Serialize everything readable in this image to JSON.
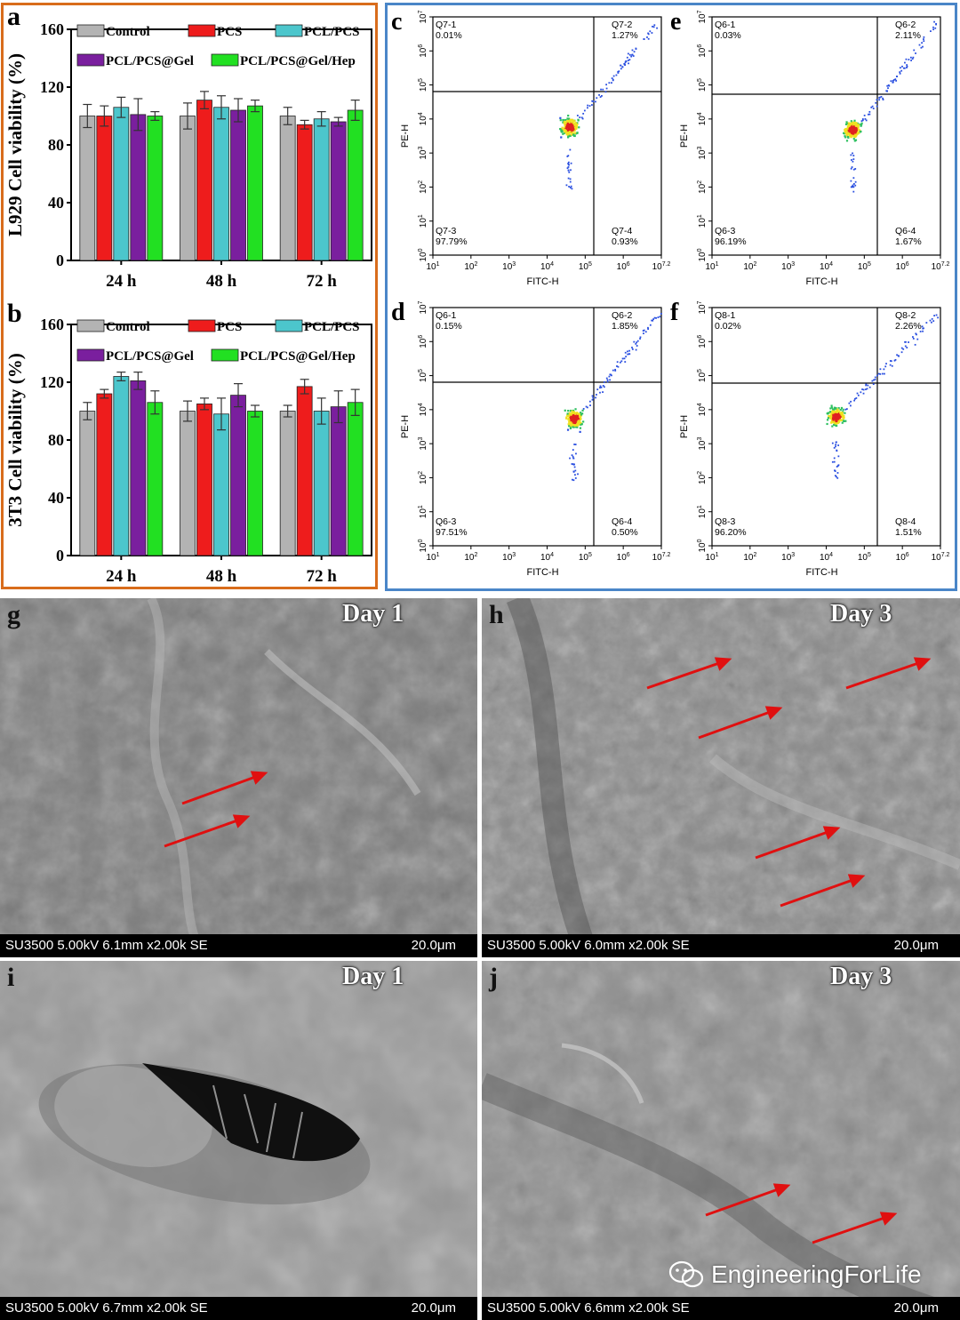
{
  "bar_panels": [
    {
      "letter": "a",
      "ylabel": "L929 Cell viability (%)"
    },
    {
      "letter": "b",
      "ylabel": "3T3 Cell viability (%)"
    }
  ],
  "legend": [
    "Control",
    "PCS",
    "PCL/PCS",
    "PCL/PCS@Gel",
    "PCL/PCS@Gel/Hep"
  ],
  "colors": {
    "Control": "#b3b3b3",
    "PCS": "#ee1c1c",
    "PCL/PCS": "#4cc6cc",
    "PCL/PCS@Gel": "#7a1f9e",
    "PCL/PCS@Gel/Hep": "#22e022",
    "left_border": "#d86c1c",
    "right_border": "#4a86c8"
  },
  "chart_data": [
    {
      "type": "bar",
      "ylabel": "L929 Cell viability (%)",
      "categories": [
        "24 h",
        "48 h",
        "72 h"
      ],
      "ylim": [
        0,
        160
      ],
      "yticks": [
        "0",
        "40",
        "80",
        "120",
        "160"
      ],
      "series": [
        {
          "name": "Control",
          "values": [
            100,
            100,
            100
          ],
          "errors": [
            8,
            9,
            6
          ]
        },
        {
          "name": "PCS",
          "values": [
            100,
            111,
            94
          ],
          "errors": [
            7,
            6,
            3
          ]
        },
        {
          "name": "PCL/PCS",
          "values": [
            106,
            106,
            98
          ],
          "errors": [
            7,
            8,
            5
          ]
        },
        {
          "name": "PCL/PCS@Gel",
          "values": [
            101,
            104,
            96
          ],
          "errors": [
            11,
            8,
            3
          ]
        },
        {
          "name": "PCL/PCS@Gel/Hep",
          "values": [
            100,
            107,
            104
          ],
          "errors": [
            3,
            4,
            7
          ]
        }
      ]
    },
    {
      "type": "bar",
      "ylabel": "3T3 Cell viability (%)",
      "categories": [
        "24 h",
        "48 h",
        "72 h"
      ],
      "ylim": [
        0,
        160
      ],
      "yticks": [
        "0",
        "40",
        "80",
        "120",
        "160"
      ],
      "series": [
        {
          "name": "Control",
          "values": [
            100,
            100,
            100
          ],
          "errors": [
            6,
            7,
            4
          ]
        },
        {
          "name": "PCS",
          "values": [
            112,
            105,
            117
          ],
          "errors": [
            3,
            4,
            5
          ]
        },
        {
          "name": "PCL/PCS",
          "values": [
            124,
            98,
            100
          ],
          "errors": [
            3,
            11,
            9
          ]
        },
        {
          "name": "PCL/PCS@Gel",
          "values": [
            121,
            111,
            103
          ],
          "errors": [
            6,
            8,
            11
          ]
        },
        {
          "name": "PCL/PCS@Gel/Hep",
          "values": [
            106,
            100,
            106
          ],
          "errors": [
            8,
            4,
            9
          ]
        }
      ]
    }
  ],
  "flow_panels": [
    {
      "letter": "c",
      "tl": [
        "Q7-1",
        "0.01%"
      ],
      "tr": [
        "Q7-2",
        "1.27%"
      ],
      "bl": [
        "Q7-3",
        "97.79%"
      ],
      "br": [
        "Q7-4",
        "0.93%"
      ]
    },
    {
      "letter": "e",
      "tl": [
        "Q6-1",
        "0.03%"
      ],
      "tr": [
        "Q6-2",
        "2.11%"
      ],
      "bl": [
        "Q6-3",
        "96.19%"
      ],
      "br": [
        "Q6-4",
        "1.67%"
      ]
    },
    {
      "letter": "d",
      "tl": [
        "Q6-1",
        "0.15%"
      ],
      "tr": [
        "Q6-2",
        "1.85%"
      ],
      "bl": [
        "Q6-3",
        "97.51%"
      ],
      "br": [
        "Q6-4",
        "0.50%"
      ]
    },
    {
      "letter": "f",
      "tl": [
        "Q8-1",
        "0.02%"
      ],
      "tr": [
        "Q8-2",
        "2.26%"
      ],
      "bl": [
        "Q8-3",
        "96.20%"
      ],
      "br": [
        "Q8-4",
        "1.51%"
      ]
    }
  ],
  "flow_axes": {
    "xlabel": "FITC-H",
    "ylabel": "PE-H",
    "base": "10",
    "xexp": [
      "1",
      "2",
      "3",
      "4",
      "5",
      "6",
      "7.2"
    ],
    "yexp": [
      "0",
      "1",
      "2",
      "3",
      "4",
      "5",
      "6",
      "7"
    ]
  },
  "sem": [
    {
      "letter": "g",
      "day": "Day 1",
      "info": "SU3500 5.00kV 6.1mm x2.00k SE",
      "scale": "20.0μm"
    },
    {
      "letter": "h",
      "day": "Day 3",
      "info": "SU3500 5.00kV 6.0mm x2.00k SE",
      "scale": "20.0μm"
    },
    {
      "letter": "i",
      "day": "Day 1",
      "info": "SU3500 5.00kV 6.7mm x2.00k SE",
      "scale": "20.0μm"
    },
    {
      "letter": "j",
      "day": "Day 3",
      "info": "SU3500 5.00kV 6.6mm x2.00k SE",
      "scale": "20.0μm"
    }
  ],
  "watermark": "EngineeringForLife"
}
